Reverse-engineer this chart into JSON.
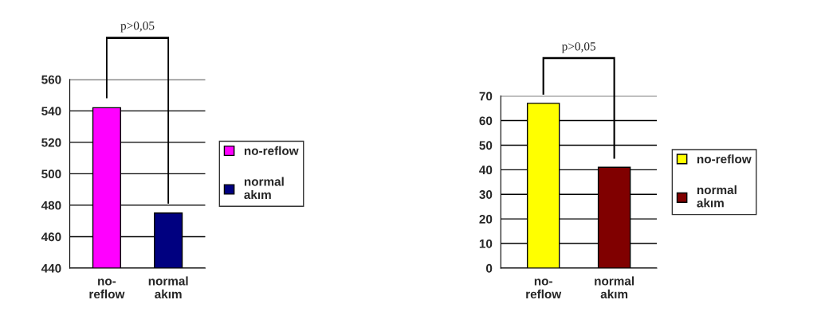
{
  "chart_data": [
    {
      "type": "bar",
      "categories": [
        "no-reflow",
        "normal akım"
      ],
      "series": [
        {
          "name": "no-reflow",
          "color": "#ff00ff",
          "values": [
            542,
            null
          ]
        },
        {
          "name": "normal akım",
          "color": "#000080",
          "values": [
            null,
            475
          ]
        }
      ],
      "ylim": [
        440,
        560
      ],
      "yticks": [
        440,
        460,
        480,
        500,
        520,
        540,
        560
      ],
      "grid": "y",
      "legend": "right",
      "annotations": [
        "p>0,05"
      ]
    },
    {
      "type": "bar",
      "categories": [
        "no-reflow",
        "normal akım"
      ],
      "series": [
        {
          "name": "no-reflow",
          "color": "#ffff00",
          "values": [
            67,
            null
          ]
        },
        {
          "name": "normal akım",
          "color": "#800000",
          "values": [
            null,
            41
          ]
        }
      ],
      "ylim": [
        0,
        70
      ],
      "yticks": [
        0,
        10,
        20,
        30,
        40,
        50,
        60,
        70
      ],
      "grid": "y",
      "legend": "right",
      "annotations": [
        "p>0,05"
      ]
    }
  ]
}
